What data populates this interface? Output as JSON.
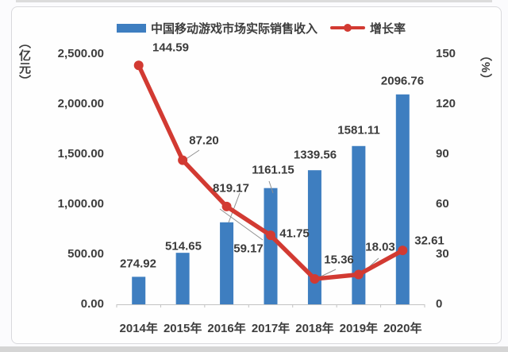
{
  "legend": {
    "bar_series_label": "中国移动游戏市场实际销售收入",
    "line_series_label": "增长率"
  },
  "chart_data": {
    "type": "bar+line combo",
    "title": "",
    "categories": [
      "2014年",
      "2015年",
      "2016年",
      "2017年",
      "2018年",
      "2019年",
      "2020年"
    ],
    "series": [
      {
        "name": "中国移动游戏市场实际销售收入",
        "type": "bar",
        "axis": "left",
        "color": "#3e7ec0",
        "values": [
          274.92,
          514.65,
          819.17,
          1161.15,
          1339.56,
          1581.11,
          2096.76
        ],
        "labels": [
          "274.92",
          "514.65",
          "819.17",
          "1161.15",
          "1339.56",
          "1581.11",
          "2096.76"
        ]
      },
      {
        "name": "增长率",
        "type": "line",
        "axis": "right",
        "color": "#d23a32",
        "values": [
          144.59,
          87.2,
          59.17,
          41.75,
          15.36,
          18.03,
          32.61
        ],
        "labels": [
          "144.59",
          "87.20",
          "59.17",
          "41.75",
          "15.36",
          "18.03",
          "32.61"
        ]
      }
    ],
    "left_axis": {
      "unit": "（亿元）",
      "min": 0,
      "max": 2500,
      "ticks": [
        "2,500.00",
        "2,000.00",
        "1,500.00",
        "1,000.00",
        "500.00",
        "0.00"
      ]
    },
    "right_axis": {
      "unit": "（%）",
      "min": 0,
      "max": 150,
      "ticks": [
        "150",
        "120",
        "90",
        "60",
        "30",
        "0"
      ]
    },
    "grid": false,
    "legend_position": "top",
    "colors": {
      "bar": "#3e7ec0",
      "line": "#d23a32",
      "text": "#3d3d3d",
      "axis": "#c3c3c3"
    }
  }
}
